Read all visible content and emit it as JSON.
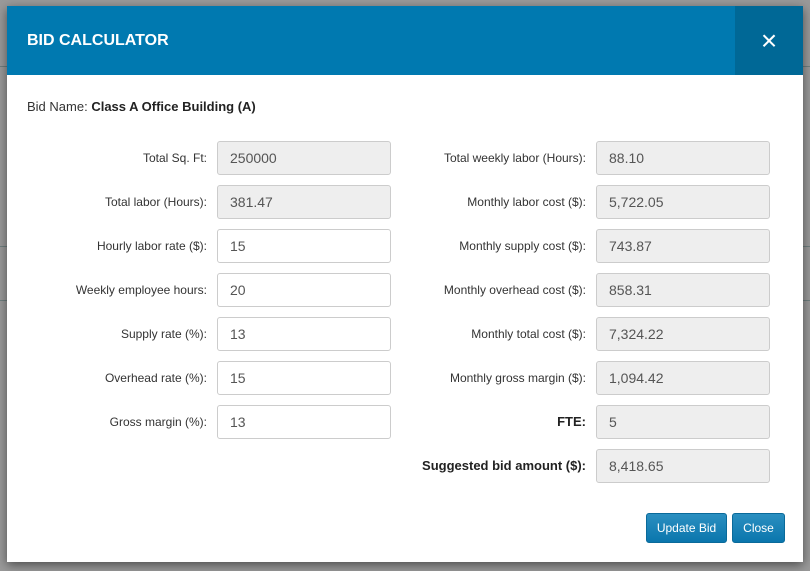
{
  "modal": {
    "title": "BID CALCULATOR",
    "close_icon": "×",
    "bid_name_label": "Bid Name:",
    "bid_name": "Class A Office Building (A)"
  },
  "left": [
    {
      "label": "Total Sq. Ft:",
      "value": "250000",
      "readonly": true
    },
    {
      "label": "Total labor (Hours):",
      "value": "381.47",
      "readonly": true
    },
    {
      "label": "Hourly labor rate ($):",
      "value": "15",
      "readonly": false
    },
    {
      "label": "Weekly employee hours:",
      "value": "20",
      "readonly": false
    },
    {
      "label": "Supply rate (%):",
      "value": "13",
      "readonly": false
    },
    {
      "label": "Overhead rate (%):",
      "value": "15",
      "readonly": false
    },
    {
      "label": "Gross margin (%):",
      "value": "13",
      "readonly": false
    }
  ],
  "right": [
    {
      "label": "Total weekly labor (Hours):",
      "value": "88.10"
    },
    {
      "label": "Monthly labor cost ($):",
      "value": "5,722.05"
    },
    {
      "label": "Monthly supply cost ($):",
      "value": "743.87"
    },
    {
      "label": "Monthly overhead cost ($):",
      "value": "858.31"
    },
    {
      "label": "Monthly total cost ($):",
      "value": "7,324.22"
    },
    {
      "label": "Monthly gross margin ($):",
      "value": "1,094.42"
    },
    {
      "label": "FTE:",
      "value": "5",
      "bold": true
    },
    {
      "label": "Suggested bid amount ($):",
      "value": "8,418.65",
      "bold": true
    }
  ],
  "buttons": {
    "update": "Update Bid",
    "close": "Close"
  },
  "colors": {
    "header": "#0079b0",
    "button": "#0a76ad"
  }
}
